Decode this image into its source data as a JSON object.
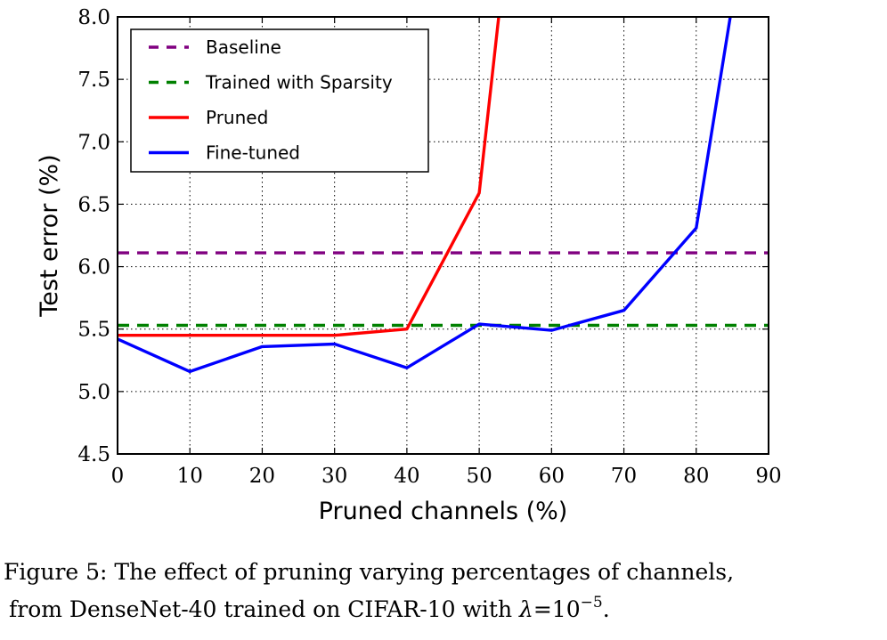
{
  "chart_data": {
    "type": "line",
    "xlabel": "Pruned channels (%)",
    "ylabel": "Test error (%)",
    "xlim": [
      0,
      90
    ],
    "ylim": [
      4.5,
      8.0
    ],
    "xticks": [
      "0",
      "10",
      "20",
      "30",
      "40",
      "50",
      "60",
      "70",
      "80",
      "90"
    ],
    "yticks": [
      "4.5",
      "5.0",
      "5.5",
      "6.0",
      "6.5",
      "7.0",
      "7.5",
      "8.0"
    ],
    "grid": true,
    "legend_position": "top-left",
    "series": [
      {
        "name": "Baseline",
        "style": "dashed",
        "color": "#800080",
        "x": [
          0,
          90
        ],
        "values": [
          6.11,
          6.11
        ]
      },
      {
        "name": "Trained with Sparsity",
        "style": "dashed",
        "color": "#008000",
        "x": [
          0,
          90
        ],
        "values": [
          5.53,
          5.53
        ]
      },
      {
        "name": "Pruned",
        "style": "solid",
        "color": "#ff0000",
        "x": [
          0,
          10,
          20,
          30,
          40,
          50,
          52.7
        ],
        "values": [
          5.45,
          5.45,
          5.45,
          5.45,
          5.5,
          6.59,
          8.0
        ]
      },
      {
        "name": "Fine-tuned",
        "style": "solid",
        "color": "#0000ff",
        "x": [
          0,
          10,
          20,
          30,
          40,
          50,
          60,
          70,
          80,
          84.7
        ],
        "values": [
          5.42,
          5.16,
          5.36,
          5.38,
          5.19,
          5.54,
          5.49,
          5.65,
          6.31,
          8.0
        ]
      }
    ]
  },
  "caption": {
    "line1": "Figure 5: The effect of pruning varying percentages of channels,",
    "line2_prefix": "from DenseNet-40 trained on CIFAR-10 with ",
    "lambda": "λ",
    "line2_eq": "=10",
    "exponent": "−5",
    "line2_end": "."
  }
}
